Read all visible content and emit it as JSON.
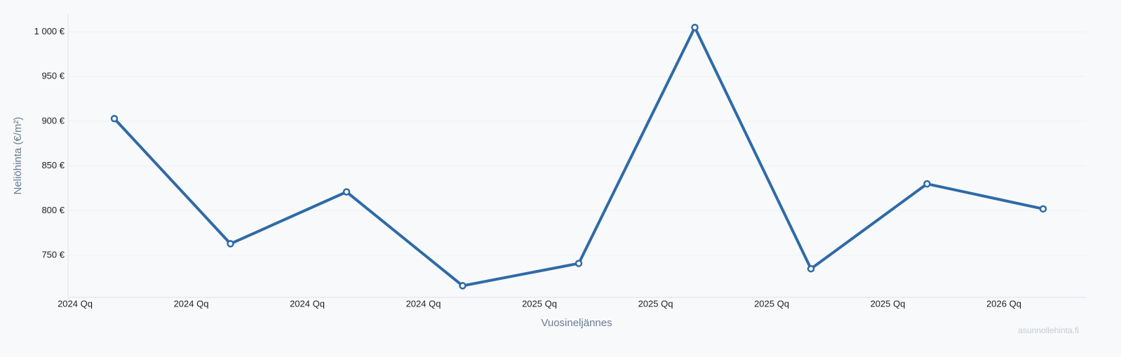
{
  "chart_data": {
    "type": "line",
    "y_label": "Neliöhinta (€/m²)",
    "x_label": "Vuosineljännes",
    "watermark": "asunnollehinta.fi",
    "categories": [
      "2024 Qq",
      "2024 Qq",
      "2024 Qq",
      "2024 Qq",
      "2025 Qq",
      "2025 Qq",
      "2025 Qq",
      "2025 Qq",
      "2026 Qq"
    ],
    "values": [
      903,
      763,
      821,
      716,
      741,
      1005,
      735,
      830,
      802
    ],
    "color": "#2f6aa6",
    "ylim": [
      703,
      1020
    ],
    "yticks": [
      {
        "value": 750,
        "label": "750 €"
      },
      {
        "value": 800,
        "label": "800 €"
      },
      {
        "value": 850,
        "label": "850 €"
      },
      {
        "value": 900,
        "label": "900 €"
      },
      {
        "value": 950,
        "label": "950 €"
      },
      {
        "value": 1000,
        "label": "1 000 €"
      }
    ],
    "grid": true
  }
}
